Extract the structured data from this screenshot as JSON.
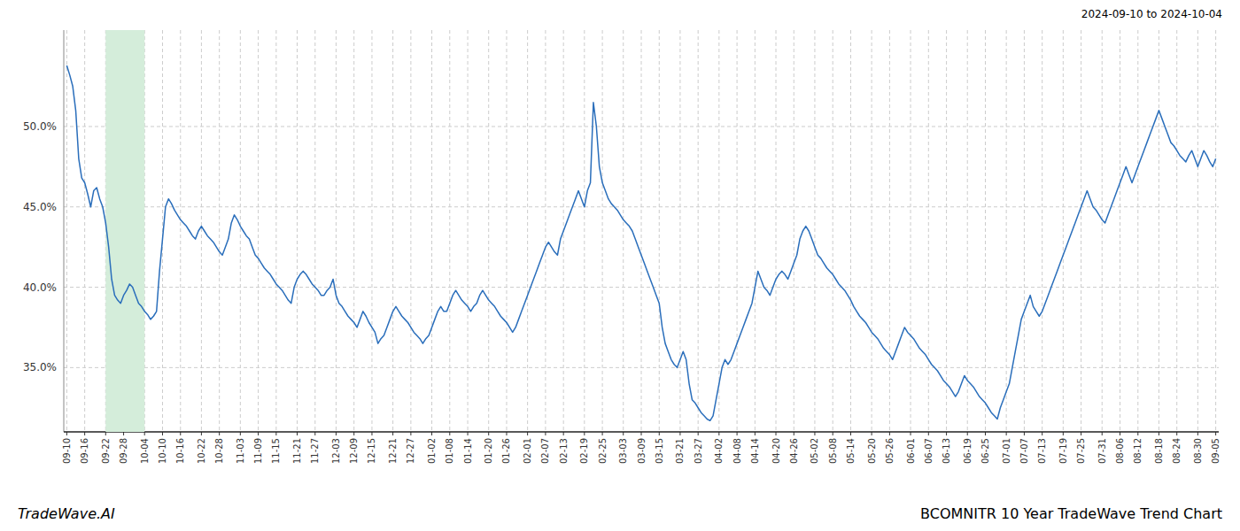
{
  "chart_data": {
    "type": "line",
    "title": "BCOMNITR 10 Year TradeWave Trend Chart",
    "subtitle": "2024-09-10 to 2024-10-04",
    "annotations": [
      "TradeWave.AI"
    ],
    "color": "#2a6ebb",
    "grid": true,
    "highlight": {
      "from": "09-22",
      "to": "10-04",
      "color": "#d4edda"
    },
    "ylim": [
      31.0,
      56.0
    ],
    "yticks": [
      {
        "value": 35.0,
        "label": "35.0%"
      },
      {
        "value": 40.0,
        "label": "40.0%"
      },
      {
        "value": 45.0,
        "label": "45.0%"
      },
      {
        "value": 50.0,
        "label": "50.0%"
      }
    ],
    "categories": [
      "09-10",
      null,
      null,
      null,
      null,
      null,
      "09-16",
      null,
      null,
      null,
      null,
      null,
      null,
      "09-22",
      null,
      null,
      null,
      null,
      null,
      "09-28",
      null,
      null,
      null,
      null,
      null,
      null,
      "10-04",
      null,
      null,
      null,
      null,
      null,
      "10-10",
      null,
      null,
      null,
      null,
      null,
      "10-16",
      null,
      null,
      null,
      null,
      null,
      null,
      "10-22",
      null,
      null,
      null,
      null,
      null,
      "10-28",
      null,
      null,
      null,
      null,
      null,
      null,
      "11-03",
      null,
      null,
      null,
      null,
      null,
      "11-09",
      null,
      null,
      null,
      null,
      null,
      "11-15",
      null,
      null,
      null,
      null,
      null,
      null,
      "11-21",
      null,
      null,
      null,
      null,
      null,
      "11-27",
      null,
      null,
      null,
      null,
      null,
      null,
      "12-03",
      null,
      null,
      null,
      null,
      null,
      "12-09",
      null,
      null,
      null,
      null,
      null,
      "12-15",
      null,
      null,
      null,
      null,
      null,
      null,
      "12-21",
      null,
      null,
      null,
      null,
      null,
      "12-27",
      null,
      null,
      null,
      null,
      null,
      null,
      "01-02",
      null,
      null,
      null,
      null,
      null,
      "01-08",
      null,
      null,
      null,
      null,
      null,
      "01-14",
      null,
      null,
      null,
      null,
      null,
      null,
      "01-20",
      null,
      null,
      null,
      null,
      null,
      "01-26",
      null,
      null,
      null,
      null,
      null,
      null,
      "02-01",
      null,
      null,
      null,
      null,
      null,
      "02-07",
      null,
      null,
      null,
      null,
      null,
      "02-13",
      null,
      null,
      null,
      null,
      null,
      null,
      "02-19",
      null,
      null,
      null,
      null,
      null,
      "02-25",
      null,
      null,
      null,
      null,
      null,
      null,
      "03-03",
      null,
      null,
      null,
      null,
      null,
      "03-09",
      null,
      null,
      null,
      null,
      null,
      "03-15",
      null,
      null,
      null,
      null,
      null,
      null,
      "03-21",
      null,
      null,
      null,
      null,
      null,
      "03-27",
      null,
      null,
      null,
      null,
      null,
      null,
      "04-02",
      null,
      null,
      null,
      null,
      null,
      "04-08",
      null,
      null,
      null,
      null,
      null,
      "04-14",
      null,
      null,
      null,
      null,
      null,
      null,
      "04-20",
      null,
      null,
      null,
      null,
      null,
      "04-26",
      null,
      null,
      null,
      null,
      null,
      null,
      "05-02",
      null,
      null,
      null,
      null,
      null,
      "05-08",
      null,
      null,
      null,
      null,
      null,
      "05-14",
      null,
      null,
      null,
      null,
      null,
      null,
      "05-20",
      null,
      null,
      null,
      null,
      null,
      "05-26",
      null,
      null,
      null,
      null,
      null,
      null,
      "06-01",
      null,
      null,
      null,
      null,
      null,
      "06-07",
      null,
      null,
      null,
      null,
      null,
      "06-13",
      null,
      null,
      null,
      null,
      null,
      null,
      "06-19",
      null,
      null,
      null,
      null,
      null,
      "06-25",
      null,
      null,
      null,
      null,
      null,
      null,
      "07-01",
      null,
      null,
      null,
      null,
      null,
      "07-07",
      null,
      null,
      null,
      null,
      null,
      "07-13",
      null,
      null,
      null,
      null,
      null,
      null,
      "07-19",
      null,
      null,
      null,
      null,
      null,
      "07-25",
      null,
      null,
      null,
      null,
      null,
      null,
      "07-31",
      null,
      null,
      null,
      null,
      null,
      "08-06",
      null,
      null,
      null,
      null,
      null,
      "08-12",
      null,
      null,
      null,
      null,
      null,
      null,
      "08-18",
      null,
      null,
      null,
      null,
      null,
      "08-24",
      null,
      null,
      null,
      null,
      null,
      null,
      "08-30",
      null,
      null,
      null,
      null,
      null,
      "09-05"
    ],
    "values": [
      53.8,
      53.2,
      52.5,
      51.0,
      48.0,
      46.8,
      46.5,
      45.8,
      45.0,
      46.0,
      46.2,
      45.5,
      45.0,
      44.0,
      42.5,
      40.5,
      39.5,
      39.2,
      39.0,
      39.5,
      39.8,
      40.2,
      40.0,
      39.5,
      39.0,
      38.8,
      38.5,
      38.3,
      38.0,
      38.2,
      38.5,
      41.0,
      43.0,
      45.0,
      45.5,
      45.2,
      44.8,
      44.5,
      44.2,
      44.0,
      43.8,
      43.5,
      43.2,
      43.0,
      43.5,
      43.8,
      43.5,
      43.2,
      43.0,
      42.8,
      42.5,
      42.2,
      42.0,
      42.5,
      43.0,
      44.0,
      44.5,
      44.2,
      43.8,
      43.5,
      43.2,
      43.0,
      42.5,
      42.0,
      41.8,
      41.5,
      41.2,
      41.0,
      40.8,
      40.5,
      40.2,
      40.0,
      39.8,
      39.5,
      39.2,
      39.0,
      40.0,
      40.5,
      40.8,
      41.0,
      40.8,
      40.5,
      40.2,
      40.0,
      39.8,
      39.5,
      39.5,
      39.8,
      40.0,
      40.5,
      39.5,
      39.0,
      38.8,
      38.5,
      38.2,
      38.0,
      37.8,
      37.5,
      38.0,
      38.5,
      38.2,
      37.8,
      37.5,
      37.2,
      36.5,
      36.8,
      37.0,
      37.5,
      38.0,
      38.5,
      38.8,
      38.5,
      38.2,
      38.0,
      37.8,
      37.5,
      37.2,
      37.0,
      36.8,
      36.5,
      36.8,
      37.0,
      37.5,
      38.0,
      38.5,
      38.8,
      38.5,
      38.5,
      39.0,
      39.5,
      39.8,
      39.5,
      39.2,
      39.0,
      38.8,
      38.5,
      38.8,
      39.0,
      39.5,
      39.8,
      39.5,
      39.2,
      39.0,
      38.8,
      38.5,
      38.2,
      38.0,
      37.8,
      37.5,
      37.2,
      37.5,
      38.0,
      38.5,
      39.0,
      39.5,
      40.0,
      40.5,
      41.0,
      41.5,
      42.0,
      42.5,
      42.8,
      42.5,
      42.2,
      42.0,
      43.0,
      43.5,
      44.0,
      44.5,
      45.0,
      45.5,
      46.0,
      45.5,
      45.0,
      46.0,
      46.5,
      51.5,
      50.0,
      47.5,
      46.5,
      46.0,
      45.5,
      45.2,
      45.0,
      44.8,
      44.5,
      44.2,
      44.0,
      43.8,
      43.5,
      43.0,
      42.5,
      42.0,
      41.5,
      41.0,
      40.5,
      40.0,
      39.5,
      39.0,
      37.5,
      36.5,
      36.0,
      35.5,
      35.2,
      35.0,
      35.5,
      36.0,
      35.5,
      34.0,
      33.0,
      32.8,
      32.5,
      32.2,
      32.0,
      31.8,
      31.7,
      32.0,
      33.0,
      34.0,
      35.0,
      35.5,
      35.2,
      35.5,
      36.0,
      36.5,
      37.0,
      37.5,
      38.0,
      38.5,
      39.0,
      40.0,
      41.0,
      40.5,
      40.0,
      39.8,
      39.5,
      40.0,
      40.5,
      40.8,
      41.0,
      40.8,
      40.5,
      41.0,
      41.5,
      42.0,
      43.0,
      43.5,
      43.8,
      43.5,
      43.0,
      42.5,
      42.0,
      41.8,
      41.5,
      41.2,
      41.0,
      40.8,
      40.5,
      40.2,
      40.0,
      39.8,
      39.5,
      39.2,
      38.8,
      38.5,
      38.2,
      38.0,
      37.8,
      37.5,
      37.2,
      37.0,
      36.8,
      36.5,
      36.2,
      36.0,
      35.8,
      35.5,
      36.0,
      36.5,
      37.0,
      37.5,
      37.2,
      37.0,
      36.8,
      36.5,
      36.2,
      36.0,
      35.8,
      35.5,
      35.2,
      35.0,
      34.8,
      34.5,
      34.2,
      34.0,
      33.8,
      33.5,
      33.2,
      33.5,
      34.0,
      34.5,
      34.2,
      34.0,
      33.8,
      33.5,
      33.2,
      33.0,
      32.8,
      32.5,
      32.2,
      32.0,
      31.8,
      32.5,
      33.0,
      33.5,
      34.0,
      35.0,
      36.0,
      37.0,
      38.0,
      38.5,
      39.0,
      39.5,
      38.8,
      38.5,
      38.2,
      38.5,
      39.0,
      39.5,
      40.0,
      40.5,
      41.0,
      41.5,
      42.0,
      42.5,
      43.0,
      43.5,
      44.0,
      44.5,
      45.0,
      45.5,
      46.0,
      45.5,
      45.0,
      44.8,
      44.5,
      44.2,
      44.0,
      44.5,
      45.0,
      45.5,
      46.0,
      46.5,
      47.0,
      47.5,
      47.0,
      46.5,
      47.0,
      47.5,
      48.0,
      48.5,
      49.0,
      49.5,
      50.0,
      50.5,
      51.0,
      50.5,
      50.0,
      49.5,
      49.0,
      48.8,
      48.5,
      48.2,
      48.0,
      47.8,
      48.2,
      48.5,
      48.0,
      47.5,
      48.0,
      48.5,
      48.2,
      47.8,
      47.5,
      48.0
    ]
  }
}
